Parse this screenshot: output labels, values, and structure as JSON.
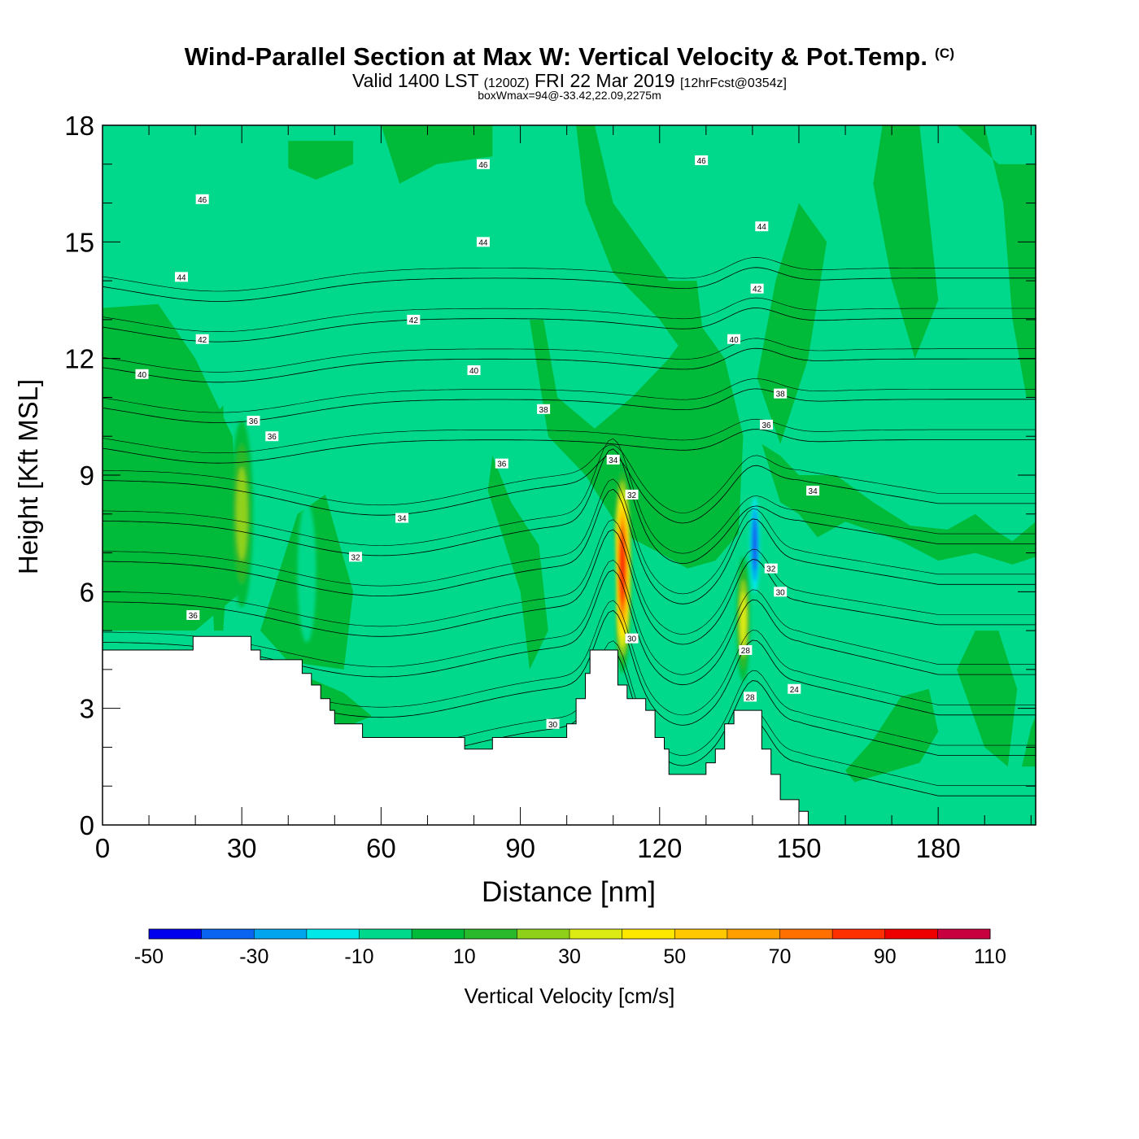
{
  "chart_data": {
    "type": "heatmap",
    "title": "Wind-Parallel Section at Max W: Vertical Velocity & Pot.Temp.",
    "title_mark": "(C)",
    "subtitle_main_a": "Valid 1400 LST",
    "subtitle_zulu": "(1200Z)",
    "subtitle_main_b": "FRI 22 Mar 2019",
    "subtitle_fcst": "[12hrFcst@0354z]",
    "subtitle2": "boxWmax=94@-33.42,22.09,2275m",
    "xlabel": "Distance [nm]",
    "ylabel": "Height [Kft MSL]",
    "xlim": [
      0,
      201
    ],
    "ylim": [
      0,
      18
    ],
    "x_ticks": [
      0,
      30,
      60,
      90,
      120,
      150,
      180
    ],
    "y_ticks": [
      0,
      3,
      6,
      9,
      12,
      15,
      18
    ],
    "colorbar": {
      "label": "Vertical Velocity [cm/s]",
      "tick_labels": [
        -50,
        -30,
        -10,
        10,
        30,
        50,
        70,
        90,
        110
      ],
      "levels": [
        -50,
        -40,
        -30,
        -20,
        -10,
        0,
        10,
        20,
        30,
        40,
        50,
        60,
        70,
        80,
        90,
        100,
        110
      ],
      "colors": [
        "#0000ee",
        "#0a64f0",
        "#00a5ee",
        "#00e8e8",
        "#00d98c",
        "#00bb3a",
        "#2ab92c",
        "#8fd11a",
        "#dceb14",
        "#ffe800",
        "#ffc800",
        "#ffa000",
        "#ff7000",
        "#ff3000",
        "#ee0000",
        "#c80040"
      ]
    },
    "terrain_profile": [
      [
        0,
        4.5
      ],
      [
        19.5,
        4.5
      ],
      [
        19.5,
        4.85
      ],
      [
        32,
        4.85
      ],
      [
        32,
        4.5
      ],
      [
        34,
        4.5
      ],
      [
        34,
        4.25
      ],
      [
        43,
        4.25
      ],
      [
        43,
        3.9
      ],
      [
        45,
        3.9
      ],
      [
        45,
        3.6
      ],
      [
        47,
        3.6
      ],
      [
        47,
        3.25
      ],
      [
        49,
        3.25
      ],
      [
        49,
        2.95
      ],
      [
        50,
        2.95
      ],
      [
        50,
        2.6
      ],
      [
        56,
        2.6
      ],
      [
        56,
        2.25
      ],
      [
        78,
        2.25
      ],
      [
        78,
        1.95
      ],
      [
        84,
        1.95
      ],
      [
        84,
        2.25
      ],
      [
        100,
        2.25
      ],
      [
        100,
        2.6
      ],
      [
        102,
        2.6
      ],
      [
        102,
        3.25
      ],
      [
        104,
        3.25
      ],
      [
        104,
        3.9
      ],
      [
        105,
        3.9
      ],
      [
        105,
        4.5
      ],
      [
        111,
        4.5
      ],
      [
        111,
        3.6
      ],
      [
        113,
        3.6
      ],
      [
        113,
        3.25
      ],
      [
        117,
        3.25
      ],
      [
        117,
        2.95
      ],
      [
        119,
        2.95
      ],
      [
        119,
        2.25
      ],
      [
        121,
        2.25
      ],
      [
        121,
        1.95
      ],
      [
        122,
        1.95
      ],
      [
        122,
        1.3
      ],
      [
        130,
        1.3
      ],
      [
        130,
        1.6
      ],
      [
        132,
        1.6
      ],
      [
        132,
        1.95
      ],
      [
        134,
        1.95
      ],
      [
        134,
        2.6
      ],
      [
        136,
        2.6
      ],
      [
        136,
        2.95
      ],
      [
        142,
        2.95
      ],
      [
        142,
        1.95
      ],
      [
        144,
        1.95
      ],
      [
        144,
        1.3
      ],
      [
        146,
        1.3
      ],
      [
        146,
        0.65
      ],
      [
        150,
        0.65
      ],
      [
        150,
        0.35
      ],
      [
        152,
        0.35
      ],
      [
        152,
        0.0
      ],
      [
        201,
        0.0
      ]
    ],
    "w_features": [
      {
        "x": 30,
        "y": 8.0,
        "rx": 2.4,
        "ry": 2.4,
        "w": 32
      },
      {
        "x": 25.5,
        "y": 7.4,
        "rx": 1.2,
        "ry": 2.0,
        "w": 18
      },
      {
        "x": 112,
        "y": 6.6,
        "rx": 2.0,
        "ry": 2.7,
        "w": 94
      },
      {
        "x": 138,
        "y": 5.3,
        "rx": 1.5,
        "ry": 1.6,
        "w": 45
      },
      {
        "x": 140.5,
        "y": 7.2,
        "rx": 1.3,
        "ry": 1.5,
        "w": -45
      },
      {
        "x": 44,
        "y": 6.5,
        "rx": 2.0,
        "ry": 1.8,
        "w": -15
      },
      {
        "x": 109.5,
        "y": 6.0,
        "rx": 1.0,
        "ry": 1.6,
        "w": -15
      },
      {
        "x": 131,
        "y": 3.6,
        "rx": 1.5,
        "ry": 1.4,
        "w": -15
      }
    ],
    "theta_isentropes": [
      24,
      26,
      28,
      30,
      32,
      34,
      36,
      38,
      40,
      42,
      44,
      46,
      48
    ],
    "theta_labels": [
      {
        "text": "46",
        "x": 82,
        "y": 17.0
      },
      {
        "text": "46",
        "x": 129,
        "y": 17.1
      },
      {
        "text": "46",
        "x": 21.5,
        "y": 16.1
      },
      {
        "text": "44",
        "x": 142,
        "y": 15.4
      },
      {
        "text": "44",
        "x": 82,
        "y": 15.0
      },
      {
        "text": "44",
        "x": 17,
        "y": 14.1
      },
      {
        "text": "42",
        "x": 141,
        "y": 13.8
      },
      {
        "text": "42",
        "x": 67,
        "y": 13.0
      },
      {
        "text": "42",
        "x": 21.5,
        "y": 12.5
      },
      {
        "text": "40",
        "x": 136,
        "y": 12.5
      },
      {
        "text": "40",
        "x": 8.5,
        "y": 11.6
      },
      {
        "text": "40",
        "x": 80,
        "y": 11.7
      },
      {
        "text": "38",
        "x": 146,
        "y": 11.1
      },
      {
        "text": "38",
        "x": 95,
        "y": 10.7
      },
      {
        "text": "36",
        "x": 32.5,
        "y": 10.4
      },
      {
        "text": "36",
        "x": 36.5,
        "y": 10.0
      },
      {
        "text": "36",
        "x": 86,
        "y": 9.3
      },
      {
        "text": "36",
        "x": 143,
        "y": 10.3
      },
      {
        "text": "34",
        "x": 110,
        "y": 9.4
      },
      {
        "text": "34",
        "x": 153,
        "y": 8.6
      },
      {
        "text": "34",
        "x": 64.5,
        "y": 7.9
      },
      {
        "text": "32",
        "x": 114,
        "y": 8.5
      },
      {
        "text": "32",
        "x": 54.5,
        "y": 6.9
      },
      {
        "text": "32",
        "x": 144,
        "y": 6.6
      },
      {
        "text": "36",
        "x": 19.5,
        "y": 5.4
      },
      {
        "text": "30",
        "x": 146,
        "y": 6.0
      },
      {
        "text": "30",
        "x": 114,
        "y": 4.8
      },
      {
        "text": "28",
        "x": 138.5,
        "y": 4.5
      },
      {
        "text": "28",
        "x": 139.5,
        "y": 3.3
      },
      {
        "text": "24",
        "x": 149,
        "y": 3.5
      },
      {
        "text": "30",
        "x": 97,
        "y": 2.6
      }
    ]
  }
}
